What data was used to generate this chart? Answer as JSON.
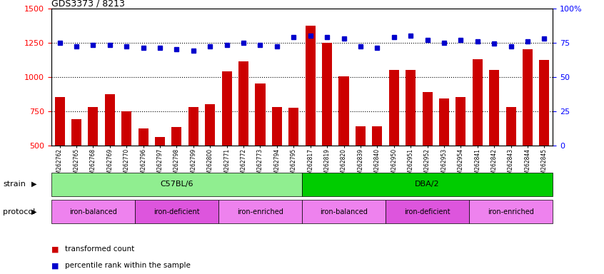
{
  "title": "GDS3373 / 8213",
  "samples": [
    "GSM262762",
    "GSM262765",
    "GSM262768",
    "GSM262769",
    "GSM262770",
    "GSM262796",
    "GSM262797",
    "GSM262798",
    "GSM262799",
    "GSM262800",
    "GSM262771",
    "GSM262772",
    "GSM262773",
    "GSM262794",
    "GSM262795",
    "GSM262817",
    "GSM262819",
    "GSM262820",
    "GSM262839",
    "GSM262840",
    "GSM262950",
    "GSM262951",
    "GSM262952",
    "GSM262953",
    "GSM262954",
    "GSM262841",
    "GSM262842",
    "GSM262843",
    "GSM262844",
    "GSM262845"
  ],
  "transformed_count": [
    850,
    690,
    780,
    870,
    745,
    620,
    560,
    635,
    780,
    800,
    1040,
    1110,
    950,
    780,
    775,
    1370,
    1250,
    1005,
    640,
    640,
    1050,
    1050,
    890,
    840,
    850,
    1130,
    1050,
    780,
    1200,
    1120
  ],
  "percentile_rank": [
    75,
    72,
    73,
    73,
    72,
    71,
    71,
    70,
    69,
    72,
    73,
    75,
    73,
    72,
    79,
    80,
    79,
    78,
    72,
    71,
    79,
    80,
    77,
    75,
    77,
    76,
    74,
    72,
    76,
    78
  ],
  "bar_color": "#cc0000",
  "dot_color": "#0000cc",
  "ylim_left": [
    500,
    1500
  ],
  "ylim_right": [
    0,
    100
  ],
  "yticks_left": [
    500,
    750,
    1000,
    1250,
    1500
  ],
  "yticks_right": [
    0,
    25,
    50,
    75,
    100
  ],
  "strain_groups": [
    {
      "label": "C57BL/6",
      "start": 0,
      "end": 14,
      "color": "#90ee90"
    },
    {
      "label": "DBA/2",
      "start": 15,
      "end": 29,
      "color": "#00cc00"
    }
  ],
  "protocol_groups": [
    {
      "label": "iron-balanced",
      "start": 0,
      "end": 4,
      "color": "#ee82ee"
    },
    {
      "label": "iron-deficient",
      "start": 5,
      "end": 9,
      "color": "#dd55dd"
    },
    {
      "label": "iron-enriched",
      "start": 10,
      "end": 14,
      "color": "#ee82ee"
    },
    {
      "label": "iron-balanced",
      "start": 15,
      "end": 19,
      "color": "#ee82ee"
    },
    {
      "label": "iron-deficient",
      "start": 20,
      "end": 24,
      "color": "#dd55dd"
    },
    {
      "label": "iron-enriched",
      "start": 25,
      "end": 29,
      "color": "#ee82ee"
    }
  ],
  "dotted_grid": [
    750,
    1000,
    1250
  ]
}
